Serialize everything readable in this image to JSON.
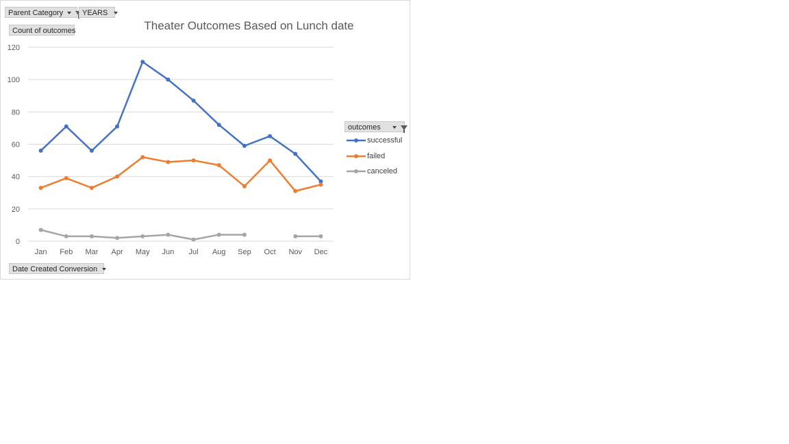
{
  "filters": {
    "parent_category": "Parent Category",
    "years": "YEARS",
    "value_field": "Count of outcomes",
    "axis_field": "Date Created Conversion",
    "legend_field": "outcomes"
  },
  "chart_data": {
    "type": "line",
    "title": "Theater Outcomes Based on Lunch date",
    "categories": [
      "Jan",
      "Feb",
      "Mar",
      "Apr",
      "May",
      "Jun",
      "Jul",
      "Aug",
      "Sep",
      "Oct",
      "Nov",
      "Dec"
    ],
    "ylim": [
      0,
      120
    ],
    "yticks": [
      0,
      20,
      40,
      60,
      80,
      100,
      120
    ],
    "grid": true,
    "legend_position": "right",
    "series": [
      {
        "name": "successful",
        "color": "#4472c4",
        "values": [
          56,
          71,
          56,
          71,
          111,
          100,
          87,
          72,
          59,
          65,
          54,
          37
        ]
      },
      {
        "name": "failed",
        "color": "#ed7d31",
        "values": [
          33,
          39,
          33,
          40,
          52,
          49,
          50,
          47,
          34,
          50,
          31,
          35
        ]
      },
      {
        "name": "canceled",
        "color": "#a5a5a5",
        "values": [
          7,
          3,
          3,
          2,
          3,
          4,
          1,
          4,
          4,
          null,
          3,
          3
        ]
      }
    ]
  }
}
